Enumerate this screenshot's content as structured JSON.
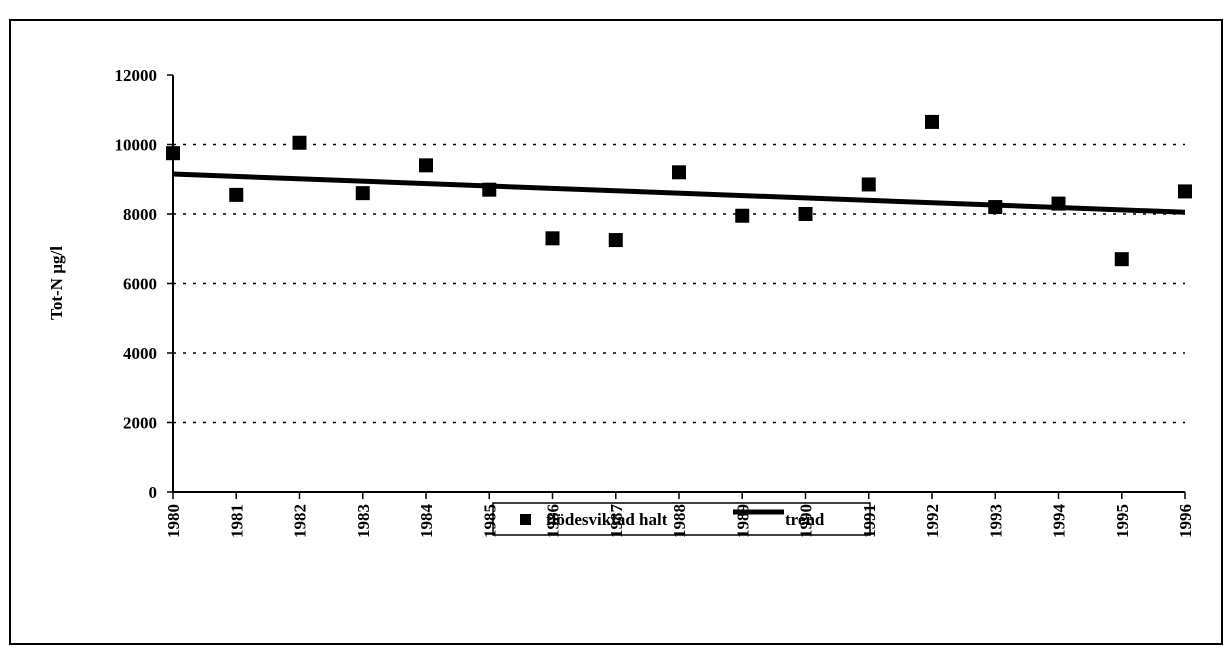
{
  "chart_data": {
    "type": "scatter",
    "y_label": "Tot-N µg/l",
    "x": [
      1980,
      1981,
      1982,
      1983,
      1984,
      1985,
      1986,
      1987,
      1988,
      1989,
      1990,
      1991,
      1992,
      1993,
      1994,
      1995,
      1996
    ],
    "series": [
      {
        "name": "flödesviktad halt",
        "color": "#000000",
        "type": "scatter",
        "values": [
          9750,
          8550,
          10050,
          8600,
          9400,
          8700,
          7300,
          7250,
          9200,
          7950,
          8000,
          8850,
          10650,
          8200,
          8300,
          6700,
          8650
        ]
      },
      {
        "name": "trend",
        "color": "#000000",
        "type": "line",
        "x": [
          1980,
          1996
        ],
        "values": [
          9150,
          8050
        ]
      }
    ],
    "xlim": [
      1980,
      1996
    ],
    "xticks": [
      1980,
      1981,
      1982,
      1983,
      1984,
      1985,
      1986,
      1987,
      1988,
      1989,
      1990,
      1991,
      1992,
      1993,
      1994,
      1995,
      1996
    ],
    "ylim": [
      0,
      12000
    ],
    "yticks": [
      0,
      2000,
      4000,
      6000,
      8000,
      10000,
      12000
    ],
    "grid": true,
    "legend": "bottom"
  }
}
